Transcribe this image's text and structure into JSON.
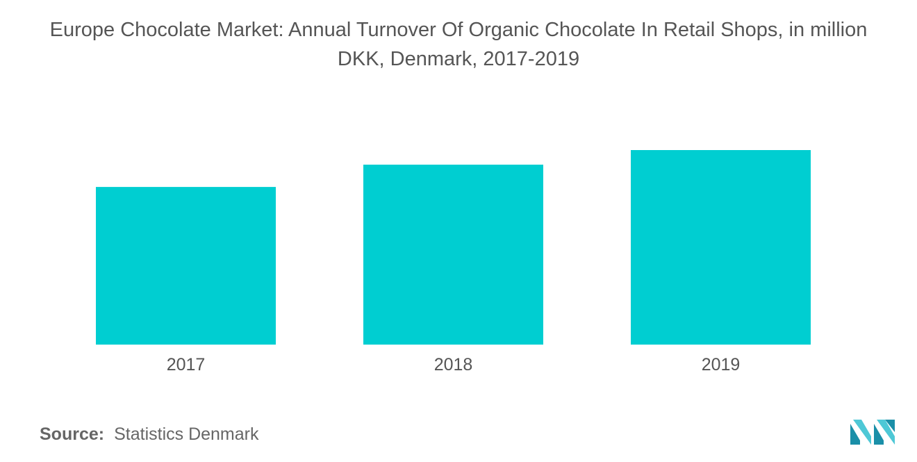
{
  "title_line1": "Europe Chocolate Market: Annual Turnover Of Organic Chocolate In Retail Shops, in million",
  "title_line2": "DKK, Denmark, 2017-2019",
  "source": {
    "label": "Source:",
    "value": "Statistics Denmark"
  },
  "logo": {
    "icon": "mordor-intelligence-logo-icon",
    "colors": [
      "#1a8fa8",
      "#4ec8d6"
    ]
  },
  "chart_data": {
    "type": "bar",
    "categories": [
      "2017",
      "2018",
      "2019"
    ],
    "values": [
      184,
      210,
      227
    ],
    "ylim": [
      0,
      300
    ],
    "bar_color": "#00ced1",
    "grid": false,
    "legend": "none"
  }
}
